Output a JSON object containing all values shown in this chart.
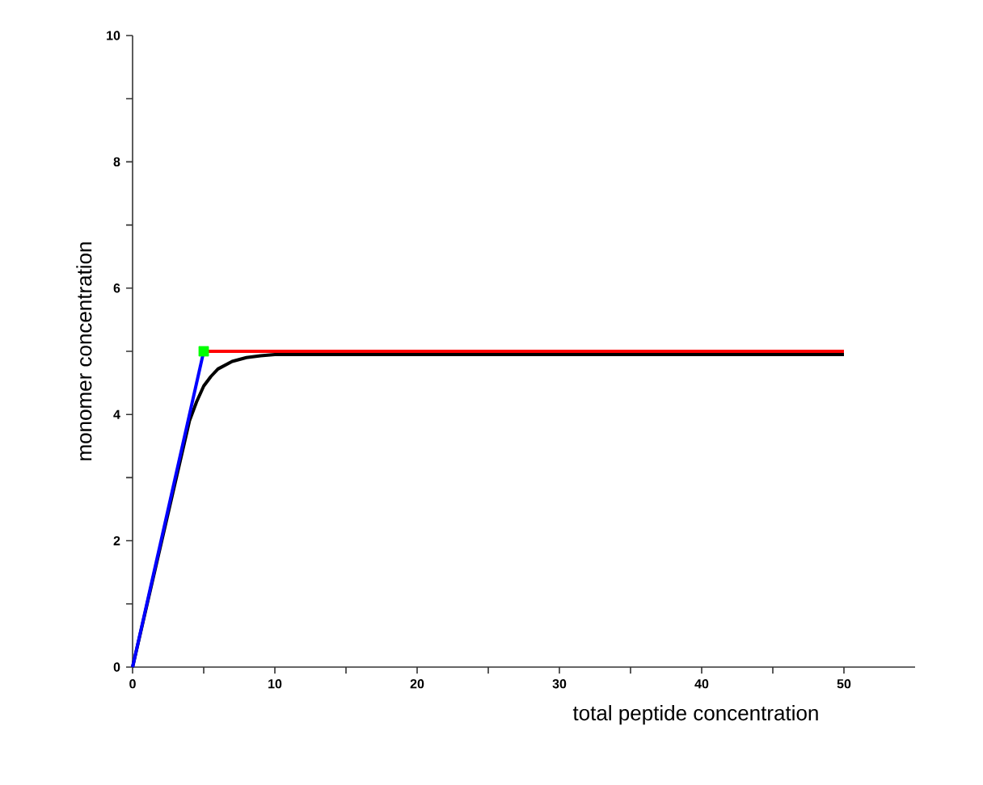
{
  "chart_data": {
    "type": "line",
    "xlabel": "total peptide concentration",
    "ylabel": "monomer concentration",
    "xlim": [
      0,
      55
    ],
    "ylim": [
      0,
      10
    ],
    "xticks": [
      0,
      {
        "value": 5,
        "label": null
      },
      10,
      {
        "value": 15,
        "label": null
      },
      20,
      {
        "value": 25,
        "label": null
      },
      30,
      {
        "value": 35,
        "label": null
      },
      40,
      {
        "value": 45,
        "label": null
      },
      50
    ],
    "yticks": [
      0,
      {
        "value": 1,
        "label": null
      },
      2,
      {
        "value": 3,
        "label": null
      },
      4,
      {
        "value": 5,
        "label": null
      },
      6,
      {
        "value": 7,
        "label": null
      },
      8,
      {
        "value": 9,
        "label": null
      },
      10
    ],
    "series": [
      {
        "color": "#000000",
        "x": [
          0,
          4,
          4.5,
          5,
          5.5,
          6,
          7,
          8,
          9,
          10,
          12,
          50
        ],
        "values": [
          0,
          3.9,
          4.2,
          4.45,
          4.6,
          4.72,
          4.84,
          4.9,
          4.93,
          4.95,
          4.95,
          4.95
        ]
      },
      {
        "color": "#0000ff",
        "x": [
          0,
          5
        ],
        "values": [
          0,
          5
        ]
      },
      {
        "color": "#ff0000",
        "x": [
          5,
          50
        ],
        "values": [
          5,
          5
        ]
      },
      {
        "color": "#00ff00",
        "type": "scatter",
        "marker": "square",
        "x": [
          5
        ],
        "values": [
          5
        ]
      }
    ]
  }
}
